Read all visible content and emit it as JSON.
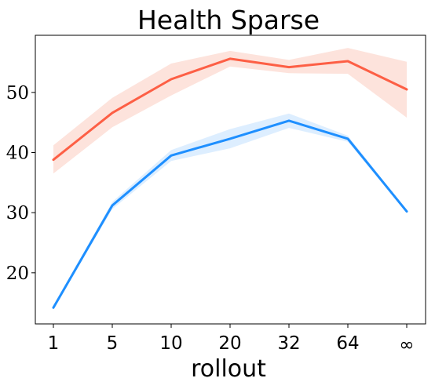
{
  "chart_data": {
    "type": "line",
    "title": "Health Sparse",
    "xlabel": "rollout",
    "ylabel": "",
    "categories": [
      "1",
      "5",
      "10",
      "20",
      "32",
      "64",
      "∞"
    ],
    "ylim": [
      11.5,
      59.5
    ],
    "yticks": [
      20,
      30,
      40,
      50
    ],
    "grid": false,
    "legend": "none",
    "series": [
      {
        "color": "#fd5f45",
        "band_color": "#fde3dc",
        "values": [
          38.8,
          46.6,
          52.2,
          55.6,
          54.2,
          55.2,
          50.5
        ],
        "lower": [
          36.5,
          44.2,
          49.5,
          54.3,
          53.2,
          53.1,
          45.8
        ],
        "upper": [
          41.2,
          49.1,
          54.8,
          56.9,
          55.4,
          57.4,
          55.1
        ]
      },
      {
        "color": "#1e8fff",
        "band_color": "#ddeeff",
        "values": [
          14.2,
          31.2,
          39.5,
          42.3,
          45.3,
          42.3,
          30.2
        ],
        "lower": [
          14.0,
          30.6,
          38.6,
          40.7,
          44.1,
          41.8,
          30.0
        ],
        "upper": [
          14.4,
          31.8,
          40.4,
          43.9,
          46.5,
          42.8,
          30.4
        ]
      }
    ]
  }
}
